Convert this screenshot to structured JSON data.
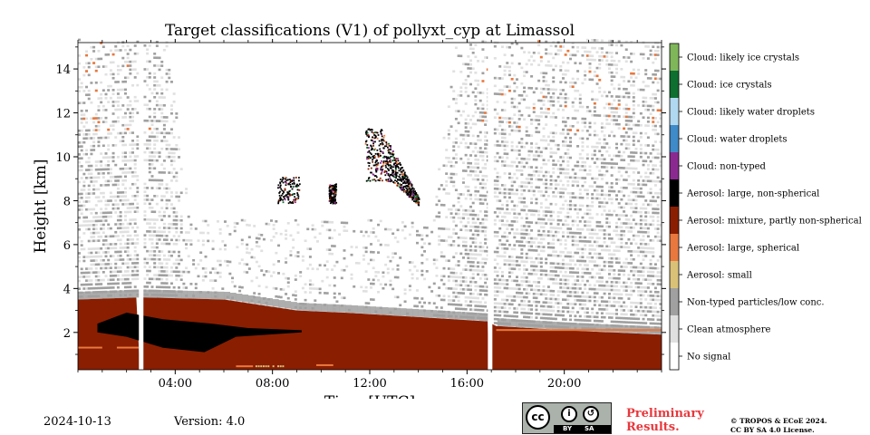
{
  "chart_data": {
    "type": "heatmap",
    "title": "Target classifications (V1) of pollyxt_cyp at Limassol",
    "xlabel": "Time [UTC]",
    "ylabel": "Height [km]",
    "xlim": [
      0,
      24
    ],
    "ylim": [
      0.3,
      15.2
    ],
    "x_ticks": [
      4,
      8,
      12,
      16,
      20
    ],
    "x_tick_labels": [
      "04:00",
      "08:00",
      "12:00",
      "16:00",
      "20:00"
    ],
    "y_ticks": [
      2,
      4,
      6,
      8,
      10,
      12,
      14
    ],
    "y_tick_labels": [
      "2",
      "4",
      "6",
      "8",
      "10",
      "12",
      "14"
    ],
    "grid": false,
    "colorbar": {
      "placement": "right",
      "classes": [
        {
          "label": "No signal",
          "color": "#ffffff"
        },
        {
          "label": "Clean atmosphere",
          "color": "#e0e0e0"
        },
        {
          "label": "Non-typed particles/low conc.",
          "color": "#a0a0a0"
        },
        {
          "label": "Aerosol: small",
          "color": "#d9c177"
        },
        {
          "label": "Aerosol: large, spherical",
          "color": "#e8783e"
        },
        {
          "label": "Aerosol: mixture, partly non-spherical",
          "color": "#8a1e00"
        },
        {
          "label": "Aerosol: large, non-spherical",
          "color": "#000000"
        },
        {
          "label": "Cloud: non-typed",
          "color": "#8a2a91"
        },
        {
          "label": "Cloud: water droplets",
          "color": "#3f8ac8"
        },
        {
          "label": "Cloud: likely water droplets",
          "color": "#b0d8f0"
        },
        {
          "label": "Cloud: ice crystals",
          "color": "#0e6f30"
        },
        {
          "label": "Cloud: likely ice crystals",
          "color": "#7fb65a"
        }
      ]
    },
    "features": {
      "data_gaps_hours": [
        2.6,
        16.95
      ],
      "aerosol_layer_top_km": {
        "t": [
          0,
          2.6,
          6,
          9,
          11,
          14,
          16.9,
          17.1,
          20,
          24
        ],
        "h": [
          3.5,
          3.6,
          3.5,
          3.0,
          2.9,
          2.7,
          2.5,
          2.3,
          2.1,
          1.9
        ]
      },
      "non_spherical_core": {
        "t_start": 0.8,
        "t_end": 9.2,
        "h_bottom": 1.1,
        "h_top": 2.9
      },
      "clouds": [
        {
          "t": [
            8.2,
            9.1
          ],
          "h": [
            7.9,
            9.1
          ]
        },
        {
          "t": [
            10.3,
            10.6
          ],
          "h": [
            7.9,
            8.8
          ]
        },
        {
          "t": [
            11.8,
            14.0
          ],
          "h": [
            7.8,
            11.3
          ]
        }
      ]
    }
  },
  "footer": {
    "date": "2024-10-13",
    "version": "Version: 4.0",
    "preliminary_line1": "Preliminary",
    "preliminary_line2": "Results.",
    "license_line1": "© TROPOS & ECoE 2024.",
    "license_line2": "CC BY SA 4.0 License.",
    "cc_text": "cc",
    "cc_by": "BY",
    "cc_sa": "SA"
  }
}
